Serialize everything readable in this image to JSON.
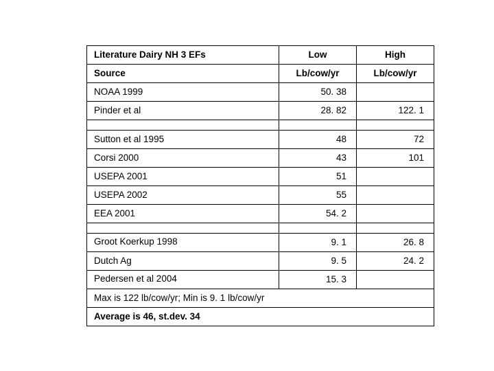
{
  "table": {
    "border_color": "#000000",
    "background_color": "#ffffff",
    "font_family": "Arial",
    "header": {
      "title": "Literature Dairy NH 3 EFs",
      "low": "Low",
      "high": "High",
      "source": "Source",
      "unit_low": "Lb/cow/yr",
      "unit_high": "Lb/cow/yr"
    },
    "rows": {
      "noaa": {
        "src": "NOAA 1999",
        "low": "50. 38",
        "high": ""
      },
      "pinder": {
        "src": "Pinder et al",
        "low": "28. 82",
        "high": "122. 1"
      },
      "sutton": {
        "src": "Sutton et al 1995",
        "low": "48",
        "high": "72"
      },
      "corsi": {
        "src": "Corsi 2000",
        "low": "43",
        "high": "101"
      },
      "usepa01": {
        "src": "USEPA 2001",
        "low": "51",
        "high": ""
      },
      "usepa02": {
        "src": "USEPA 2002",
        "low": "55",
        "high": ""
      },
      "eea": {
        "src": "EEA 2001",
        "low": "54. 2",
        "high": ""
      },
      "groot": {
        "src": "Groot Koerkup 1998",
        "low": "9. 1",
        "high": "26. 8"
      },
      "dutch": {
        "src": "Dutch Ag",
        "low": "9. 5",
        "high": "24. 2"
      },
      "pedersen": {
        "src": "Pedersen et al 2004",
        "low": "15. 3",
        "high": ""
      }
    },
    "footer": {
      "maxmin": "Max is 122 lb/cow/yr; Min is 9. 1 lb/cow/yr",
      "avg": "Average is 46, st.dev. 34"
    }
  }
}
